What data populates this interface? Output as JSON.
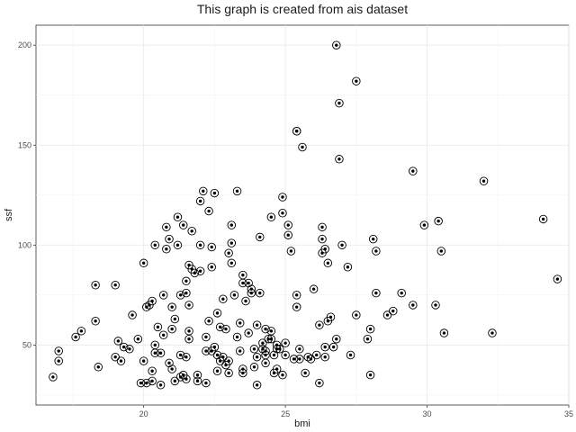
{
  "chart_data": {
    "type": "scatter",
    "title": "This graph is created from ais dataset",
    "xlabel": "bmi",
    "ylabel": "ssf",
    "xlim": [
      16.2,
      35.0
    ],
    "ylim": [
      20.0,
      210.0
    ],
    "xticks": [
      20,
      25,
      30,
      35
    ],
    "yticks": [
      50,
      100,
      150,
      200
    ],
    "xtick_labels": [
      "20",
      "25",
      "30",
      "35"
    ],
    "ytick_labels": [
      "50",
      "100",
      "150",
      "200"
    ],
    "grid": true,
    "marker": "dotted open circle",
    "points": [
      [
        16.8,
        34
      ],
      [
        17.0,
        42
      ],
      [
        17.0,
        47
      ],
      [
        17.6,
        54
      ],
      [
        17.8,
        57
      ],
      [
        18.3,
        80
      ],
      [
        18.3,
        62
      ],
      [
        18.4,
        39
      ],
      [
        19.0,
        80
      ],
      [
        19.0,
        44
      ],
      [
        19.1,
        52
      ],
      [
        19.2,
        42
      ],
      [
        19.3,
        49
      ],
      [
        19.5,
        48
      ],
      [
        19.6,
        65
      ],
      [
        19.8,
        53
      ],
      [
        19.9,
        31
      ],
      [
        20.0,
        91
      ],
      [
        20.0,
        42
      ],
      [
        20.1,
        31
      ],
      [
        20.1,
        69
      ],
      [
        20.2,
        70
      ],
      [
        20.3,
        72
      ],
      [
        20.3,
        37
      ],
      [
        20.3,
        32
      ],
      [
        20.4,
        50
      ],
      [
        20.4,
        100
      ],
      [
        20.4,
        46
      ],
      [
        20.5,
        59
      ],
      [
        20.6,
        30
      ],
      [
        20.6,
        46
      ],
      [
        20.7,
        75
      ],
      [
        20.7,
        55
      ],
      [
        20.8,
        109
      ],
      [
        20.8,
        98
      ],
      [
        20.9,
        103
      ],
      [
        20.9,
        41
      ],
      [
        21.0,
        69
      ],
      [
        21.0,
        38
      ],
      [
        21.0,
        58
      ],
      [
        21.1,
        63
      ],
      [
        21.1,
        32
      ],
      [
        21.2,
        114
      ],
      [
        21.2,
        100
      ],
      [
        21.3,
        75
      ],
      [
        21.3,
        45
      ],
      [
        21.3,
        34
      ],
      [
        21.4,
        35
      ],
      [
        21.4,
        110
      ],
      [
        21.5,
        33
      ],
      [
        21.5,
        76
      ],
      [
        21.5,
        82
      ],
      [
        21.5,
        44
      ],
      [
        21.6,
        57
      ],
      [
        21.6,
        53
      ],
      [
        21.6,
        90
      ],
      [
        21.6,
        70
      ],
      [
        21.7,
        88
      ],
      [
        21.7,
        107
      ],
      [
        21.8,
        86
      ],
      [
        21.9,
        35
      ],
      [
        21.9,
        32
      ],
      [
        22.0,
        122
      ],
      [
        22.0,
        100
      ],
      [
        22.0,
        87
      ],
      [
        22.1,
        127
      ],
      [
        22.2,
        54
      ],
      [
        22.2,
        47
      ],
      [
        22.2,
        31
      ],
      [
        22.3,
        117
      ],
      [
        22.3,
        62
      ],
      [
        22.4,
        99
      ],
      [
        22.4,
        47
      ],
      [
        22.4,
        89
      ],
      [
        22.5,
        126
      ],
      [
        22.5,
        49
      ],
      [
        22.6,
        45
      ],
      [
        22.6,
        37
      ],
      [
        22.6,
        66
      ],
      [
        22.7,
        59
      ],
      [
        22.7,
        42
      ],
      [
        22.8,
        73
      ],
      [
        22.8,
        44
      ],
      [
        22.9,
        58
      ],
      [
        22.9,
        40
      ],
      [
        23.0,
        42
      ],
      [
        23.0,
        96
      ],
      [
        23.0,
        36
      ],
      [
        23.1,
        101
      ],
      [
        23.1,
        110
      ],
      [
        23.1,
        91
      ],
      [
        23.2,
        75
      ],
      [
        23.3,
        54
      ],
      [
        23.3,
        127
      ],
      [
        23.4,
        47
      ],
      [
        23.4,
        61
      ],
      [
        23.5,
        85
      ],
      [
        23.5,
        81
      ],
      [
        23.5,
        36
      ],
      [
        23.5,
        38
      ],
      [
        23.6,
        72
      ],
      [
        23.7,
        81
      ],
      [
        23.7,
        56
      ],
      [
        23.8,
        78
      ],
      [
        23.8,
        76
      ],
      [
        23.9,
        48
      ],
      [
        23.9,
        39
      ],
      [
        24.0,
        44
      ],
      [
        24.0,
        60
      ],
      [
        24.0,
        30
      ],
      [
        24.1,
        104
      ],
      [
        24.1,
        76
      ],
      [
        24.2,
        51
      ],
      [
        24.2,
        48
      ],
      [
        24.3,
        41
      ],
      [
        24.3,
        58
      ],
      [
        24.3,
        47
      ],
      [
        24.4,
        53
      ],
      [
        24.5,
        114
      ],
      [
        24.5,
        57
      ],
      [
        24.5,
        53
      ],
      [
        24.6,
        36
      ],
      [
        24.6,
        45
      ],
      [
        24.7,
        50
      ],
      [
        24.7,
        48
      ],
      [
        24.7,
        38
      ],
      [
        24.8,
        48
      ],
      [
        24.9,
        124
      ],
      [
        24.9,
        116
      ],
      [
        24.9,
        35
      ],
      [
        25.0,
        51
      ],
      [
        25.0,
        45
      ],
      [
        25.1,
        110
      ],
      [
        25.1,
        105
      ],
      [
        25.2,
        97
      ],
      [
        25.3,
        43
      ],
      [
        25.4,
        157
      ],
      [
        25.4,
        157
      ],
      [
        25.4,
        75
      ],
      [
        25.4,
        69
      ],
      [
        25.5,
        43
      ],
      [
        25.5,
        48
      ],
      [
        25.6,
        149
      ],
      [
        25.7,
        36
      ],
      [
        25.8,
        44
      ],
      [
        25.9,
        43
      ],
      [
        26.0,
        78
      ],
      [
        26.1,
        45
      ],
      [
        26.2,
        60
      ],
      [
        26.2,
        31
      ],
      [
        26.3,
        96
      ],
      [
        26.3,
        103
      ],
      [
        26.3,
        109
      ],
      [
        26.4,
        98
      ],
      [
        26.4,
        44
      ],
      [
        26.4,
        49
      ],
      [
        26.5,
        91
      ],
      [
        26.5,
        62
      ],
      [
        26.6,
        64
      ],
      [
        26.7,
        49
      ],
      [
        26.8,
        53
      ],
      [
        26.8,
        200
      ],
      [
        26.9,
        143
      ],
      [
        26.9,
        171
      ],
      [
        27.0,
        100
      ],
      [
        27.2,
        89
      ],
      [
        27.3,
        45
      ],
      [
        27.5,
        182
      ],
      [
        27.5,
        65
      ],
      [
        27.9,
        53
      ],
      [
        28.0,
        35
      ],
      [
        28.0,
        58
      ],
      [
        28.1,
        103
      ],
      [
        28.2,
        97
      ],
      [
        28.2,
        76
      ],
      [
        28.6,
        65
      ],
      [
        28.8,
        67
      ],
      [
        29.1,
        76
      ],
      [
        29.5,
        137
      ],
      [
        29.9,
        110
      ],
      [
        30.3,
        70
      ],
      [
        30.4,
        112
      ],
      [
        30.5,
        97
      ],
      [
        30.6,
        56
      ],
      [
        32.0,
        132
      ],
      [
        32.3,
        56
      ],
      [
        34.1,
        113
      ],
      [
        34.6,
        83
      ],
      [
        29.5,
        70
      ],
      [
        24.3,
        45
      ]
    ]
  }
}
